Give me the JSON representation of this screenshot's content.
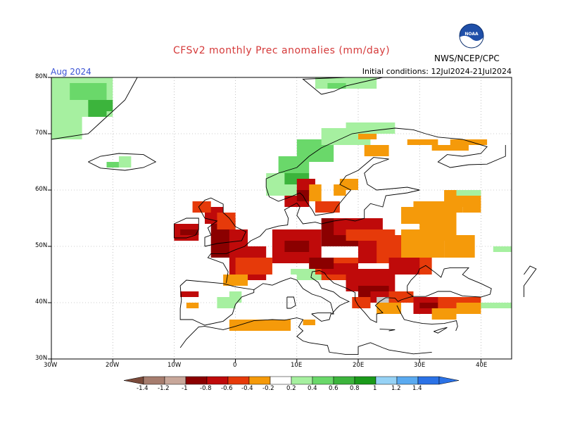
{
  "title": "CFSv2 monthly Prec anomalies (mm/day)",
  "valid_month": "Aug 2024",
  "initial_conditions": "Initial conditions: 12Jul2024-21Jul2024",
  "agency": "NWS/NCEP/CPC",
  "logo_text": "NOAA",
  "axes": {
    "lat_labels": [
      "80N",
      "70N",
      "60N",
      "50N",
      "40N",
      "30N"
    ],
    "lon_labels": [
      "30W",
      "20W",
      "10W",
      "0",
      "10E",
      "20E",
      "30E",
      "40E"
    ]
  },
  "colorbar": {
    "labels": [
      "-1.4",
      "-1.2",
      "-1",
      "-0.8",
      "-0.6",
      "-0.4",
      "-0.2",
      "0.2",
      "0.4",
      "0.6",
      "0.8",
      "1",
      "1.2",
      "1.4"
    ],
    "colors": [
      "#7a4a3a",
      "#a67d6e",
      "#c8a79a",
      "#8b0000",
      "#bf0a0a",
      "#e63a0a",
      "#f59a0a",
      "#ffffff",
      "#a6f0a0",
      "#6ad86a",
      "#3cb43c",
      "#1a9a1a",
      "#96d2f5",
      "#5aaaf0",
      "#2b72e6"
    ],
    "neutral_index": 7
  },
  "anomaly_colors": {
    "green_light": "#a6f0a0",
    "green_mid": "#6ad86a",
    "green_dark": "#3cb43c",
    "orange": "#f59a0a",
    "red_orange": "#e63a0a",
    "red": "#bf0a0a",
    "dark_red": "#8b0000",
    "gray": "#c8c8c8"
  }
}
